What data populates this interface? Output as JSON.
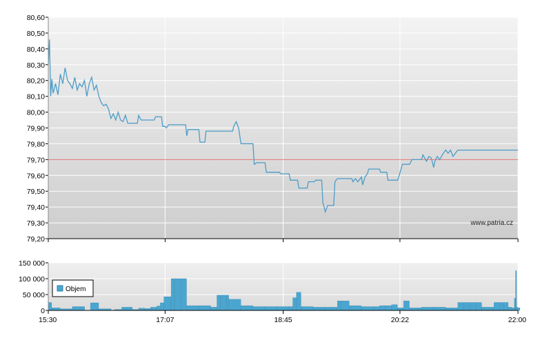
{
  "chart_data": [
    {
      "type": "line",
      "watermark": "www.patria.cz",
      "x_ticks": [
        "15:30",
        "17:07",
        "18:45",
        "20:22",
        "22:00"
      ],
      "x_range": [
        "15:30",
        "22:00"
      ],
      "y_ticks": [
        "79,20",
        "79,30",
        "79,40",
        "79,50",
        "79,60",
        "79,70",
        "79,80",
        "79,90",
        "80,00",
        "80,10",
        "80,20",
        "80,30",
        "80,40",
        "80,50",
        "80,60"
      ],
      "ylim": [
        79.2,
        80.6
      ],
      "reference_line": 79.7,
      "grid": true,
      "colors": {
        "line": "#4a9cc8",
        "reference": "#e07070",
        "grid": "#ffffff",
        "bg_top": "#f1f1f1",
        "bg_bottom": "#cfcfcf"
      },
      "series": [
        {
          "points": [
            [
              "15:30",
              80.3
            ],
            [
              "15:31",
              80.46
            ],
            [
              "15:32",
              80.1
            ],
            [
              "15:33",
              80.21
            ],
            [
              "15:34",
              80.12
            ],
            [
              "15:36",
              80.18
            ],
            [
              "15:38",
              80.11
            ],
            [
              "15:40",
              80.24
            ],
            [
              "15:42",
              80.18
            ],
            [
              "15:44",
              80.28
            ],
            [
              "15:46",
              80.2
            ],
            [
              "15:48",
              80.18
            ],
            [
              "15:50",
              80.15
            ],
            [
              "15:52",
              80.22
            ],
            [
              "15:54",
              80.14
            ],
            [
              "15:56",
              80.18
            ],
            [
              "15:58",
              80.16
            ],
            [
              "16:00",
              80.2
            ],
            [
              "16:02",
              80.1
            ],
            [
              "16:04",
              80.18
            ],
            [
              "16:06",
              80.22
            ],
            [
              "16:08",
              80.14
            ],
            [
              "16:10",
              80.17
            ],
            [
              "16:12",
              80.1
            ],
            [
              "16:14",
              80.06
            ],
            [
              "16:16",
              80.04
            ],
            [
              "16:18",
              80.05
            ],
            [
              "16:20",
              80.02
            ],
            [
              "16:22",
              79.96
            ],
            [
              "16:24",
              79.99
            ],
            [
              "16:26",
              79.95
            ],
            [
              "16:28",
              80.0
            ],
            [
              "16:30",
              79.95
            ],
            [
              "16:32",
              79.94
            ],
            [
              "16:34",
              79.98
            ],
            [
              "16:36",
              79.93
            ],
            [
              "16:44",
              79.93
            ],
            [
              "16:45",
              79.98
            ],
            [
              "16:47",
              79.95
            ],
            [
              "16:58",
              79.95
            ],
            [
              "16:59",
              79.97
            ],
            [
              "17:04",
              79.97
            ],
            [
              "17:05",
              79.91
            ],
            [
              "17:07",
              79.91
            ],
            [
              "17:08",
              79.9
            ],
            [
              "17:10",
              79.92
            ],
            [
              "17:24",
              79.92
            ],
            [
              "17:25",
              79.85
            ],
            [
              "17:26",
              79.89
            ],
            [
              "17:35",
              79.89
            ],
            [
              "17:36",
              79.81
            ],
            [
              "17:40",
              79.81
            ],
            [
              "17:41",
              79.88
            ],
            [
              "18:03",
              79.88
            ],
            [
              "18:04",
              79.91
            ],
            [
              "18:06",
              79.94
            ],
            [
              "18:08",
              79.9
            ],
            [
              "18:10",
              79.8
            ],
            [
              "18:20",
              79.8
            ],
            [
              "18:21",
              79.67
            ],
            [
              "18:23",
              79.68
            ],
            [
              "18:30",
              79.68
            ],
            [
              "18:31",
              79.62
            ],
            [
              "18:42",
              79.62
            ],
            [
              "18:43",
              79.61
            ],
            [
              "18:50",
              79.61
            ],
            [
              "18:51",
              79.57
            ],
            [
              "18:57",
              79.57
            ],
            [
              "18:58",
              79.52
            ],
            [
              "19:05",
              79.52
            ],
            [
              "19:06",
              79.56
            ],
            [
              "19:11",
              79.56
            ],
            [
              "19:12",
              79.57
            ],
            [
              "19:17",
              79.57
            ],
            [
              "19:18",
              79.43
            ],
            [
              "19:20",
              79.37
            ],
            [
              "19:22",
              79.41
            ],
            [
              "19:27",
              79.41
            ],
            [
              "19:28",
              79.56
            ],
            [
              "19:30",
              79.58
            ],
            [
              "19:42",
              79.58
            ],
            [
              "19:43",
              79.56
            ],
            [
              "19:45",
              79.58
            ],
            [
              "19:47",
              79.56
            ],
            [
              "19:50",
              79.59
            ],
            [
              "19:51",
              79.54
            ],
            [
              "19:53",
              79.59
            ],
            [
              "19:55",
              79.61
            ],
            [
              "19:56",
              79.64
            ],
            [
              "20:05",
              79.64
            ],
            [
              "20:06",
              79.62
            ],
            [
              "20:11",
              79.62
            ],
            [
              "20:12",
              79.57
            ],
            [
              "20:20",
              79.57
            ],
            [
              "20:21",
              79.59
            ],
            [
              "20:24",
              79.67
            ],
            [
              "20:30",
              79.67
            ],
            [
              "20:32",
              79.7
            ],
            [
              "20:40",
              79.7
            ],
            [
              "20:41",
              79.73
            ],
            [
              "20:44",
              79.69
            ],
            [
              "20:46",
              79.72
            ],
            [
              "20:48",
              79.71
            ],
            [
              "20:50",
              79.65
            ],
            [
              "20:51",
              79.69
            ],
            [
              "20:53",
              79.72
            ],
            [
              "20:55",
              79.7
            ],
            [
              "20:58",
              79.74
            ],
            [
              "21:00",
              79.76
            ],
            [
              "21:02",
              79.74
            ],
            [
              "21:04",
              79.76
            ],
            [
              "21:06",
              79.72
            ],
            [
              "21:08",
              79.74
            ],
            [
              "21:10",
              79.76
            ],
            [
              "22:00",
              79.76
            ]
          ]
        }
      ]
    },
    {
      "type": "bar",
      "x_ticks": [
        "15:30",
        "17:07",
        "18:45",
        "20:22",
        "22:00"
      ],
      "x_range": [
        "15:30",
        "22:00"
      ],
      "y_ticks": [
        "0",
        "50 000",
        "100 000",
        "150 000"
      ],
      "ylim": [
        0,
        150000
      ],
      "grid": true,
      "legend": {
        "label": "Objem",
        "placement": "left"
      },
      "colors": {
        "bar": "#4aa6d0",
        "bar_edge": "#2f7fa8"
      },
      "bars": [
        [
          "15:30",
          25000
        ],
        [
          "15:33",
          8000
        ],
        [
          "15:40",
          5000
        ],
        [
          "15:50",
          12000
        ],
        [
          "16:05",
          24000
        ],
        [
          "16:12",
          5000
        ],
        [
          "16:25",
          3000
        ],
        [
          "16:31",
          10000
        ],
        [
          "16:40",
          3000
        ],
        [
          "16:45",
          7000
        ],
        [
          "16:50",
          6000
        ],
        [
          "16:55",
          10000
        ],
        [
          "17:00",
          14000
        ],
        [
          "17:03",
          24000
        ],
        [
          "17:06",
          43000
        ],
        [
          "17:12",
          100000
        ],
        [
          "17:15",
          100000
        ],
        [
          "17:20",
          100000
        ],
        [
          "17:25",
          15000
        ],
        [
          "17:35",
          15000
        ],
        [
          "17:45",
          10000
        ],
        [
          "17:50",
          48000
        ],
        [
          "17:53",
          48000
        ],
        [
          "17:58",
          48000
        ],
        [
          "18:00",
          35000
        ],
        [
          "18:10",
          15000
        ],
        [
          "18:20",
          12000
        ],
        [
          "18:30",
          12000
        ],
        [
          "18:40",
          12000
        ],
        [
          "18:50",
          12000
        ],
        [
          "18:53",
          40000
        ],
        [
          "18:56",
          57000
        ],
        [
          "19:00",
          12000
        ],
        [
          "19:10",
          10000
        ],
        [
          "19:20",
          10000
        ],
        [
          "19:25",
          10000
        ],
        [
          "19:30",
          30000
        ],
        [
          "19:33",
          30000
        ],
        [
          "19:40",
          15000
        ],
        [
          "19:50",
          12000
        ],
        [
          "20:00",
          12000
        ],
        [
          "20:05",
          15000
        ],
        [
          "20:10",
          15000
        ],
        [
          "20:15",
          18000
        ],
        [
          "20:20",
          8000
        ],
        [
          "20:25",
          30000
        ],
        [
          "20:30",
          8000
        ],
        [
          "20:40",
          10000
        ],
        [
          "20:50",
          10000
        ],
        [
          "21:00",
          8000
        ],
        [
          "21:05",
          8000
        ],
        [
          "21:10",
          25000
        ],
        [
          "21:15",
          25000
        ],
        [
          "21:20",
          25000
        ],
        [
          "21:25",
          25000
        ],
        [
          "21:30",
          10000
        ],
        [
          "21:40",
          25000
        ],
        [
          "21:45",
          25000
        ],
        [
          "21:48",
          25000
        ],
        [
          "21:52",
          10000
        ],
        [
          "21:55",
          8000
        ],
        [
          "21:57",
          38000
        ],
        [
          "21:58",
          125000
        ],
        [
          "21:59",
          10000
        ],
        [
          "22:00",
          8000
        ]
      ]
    }
  ]
}
